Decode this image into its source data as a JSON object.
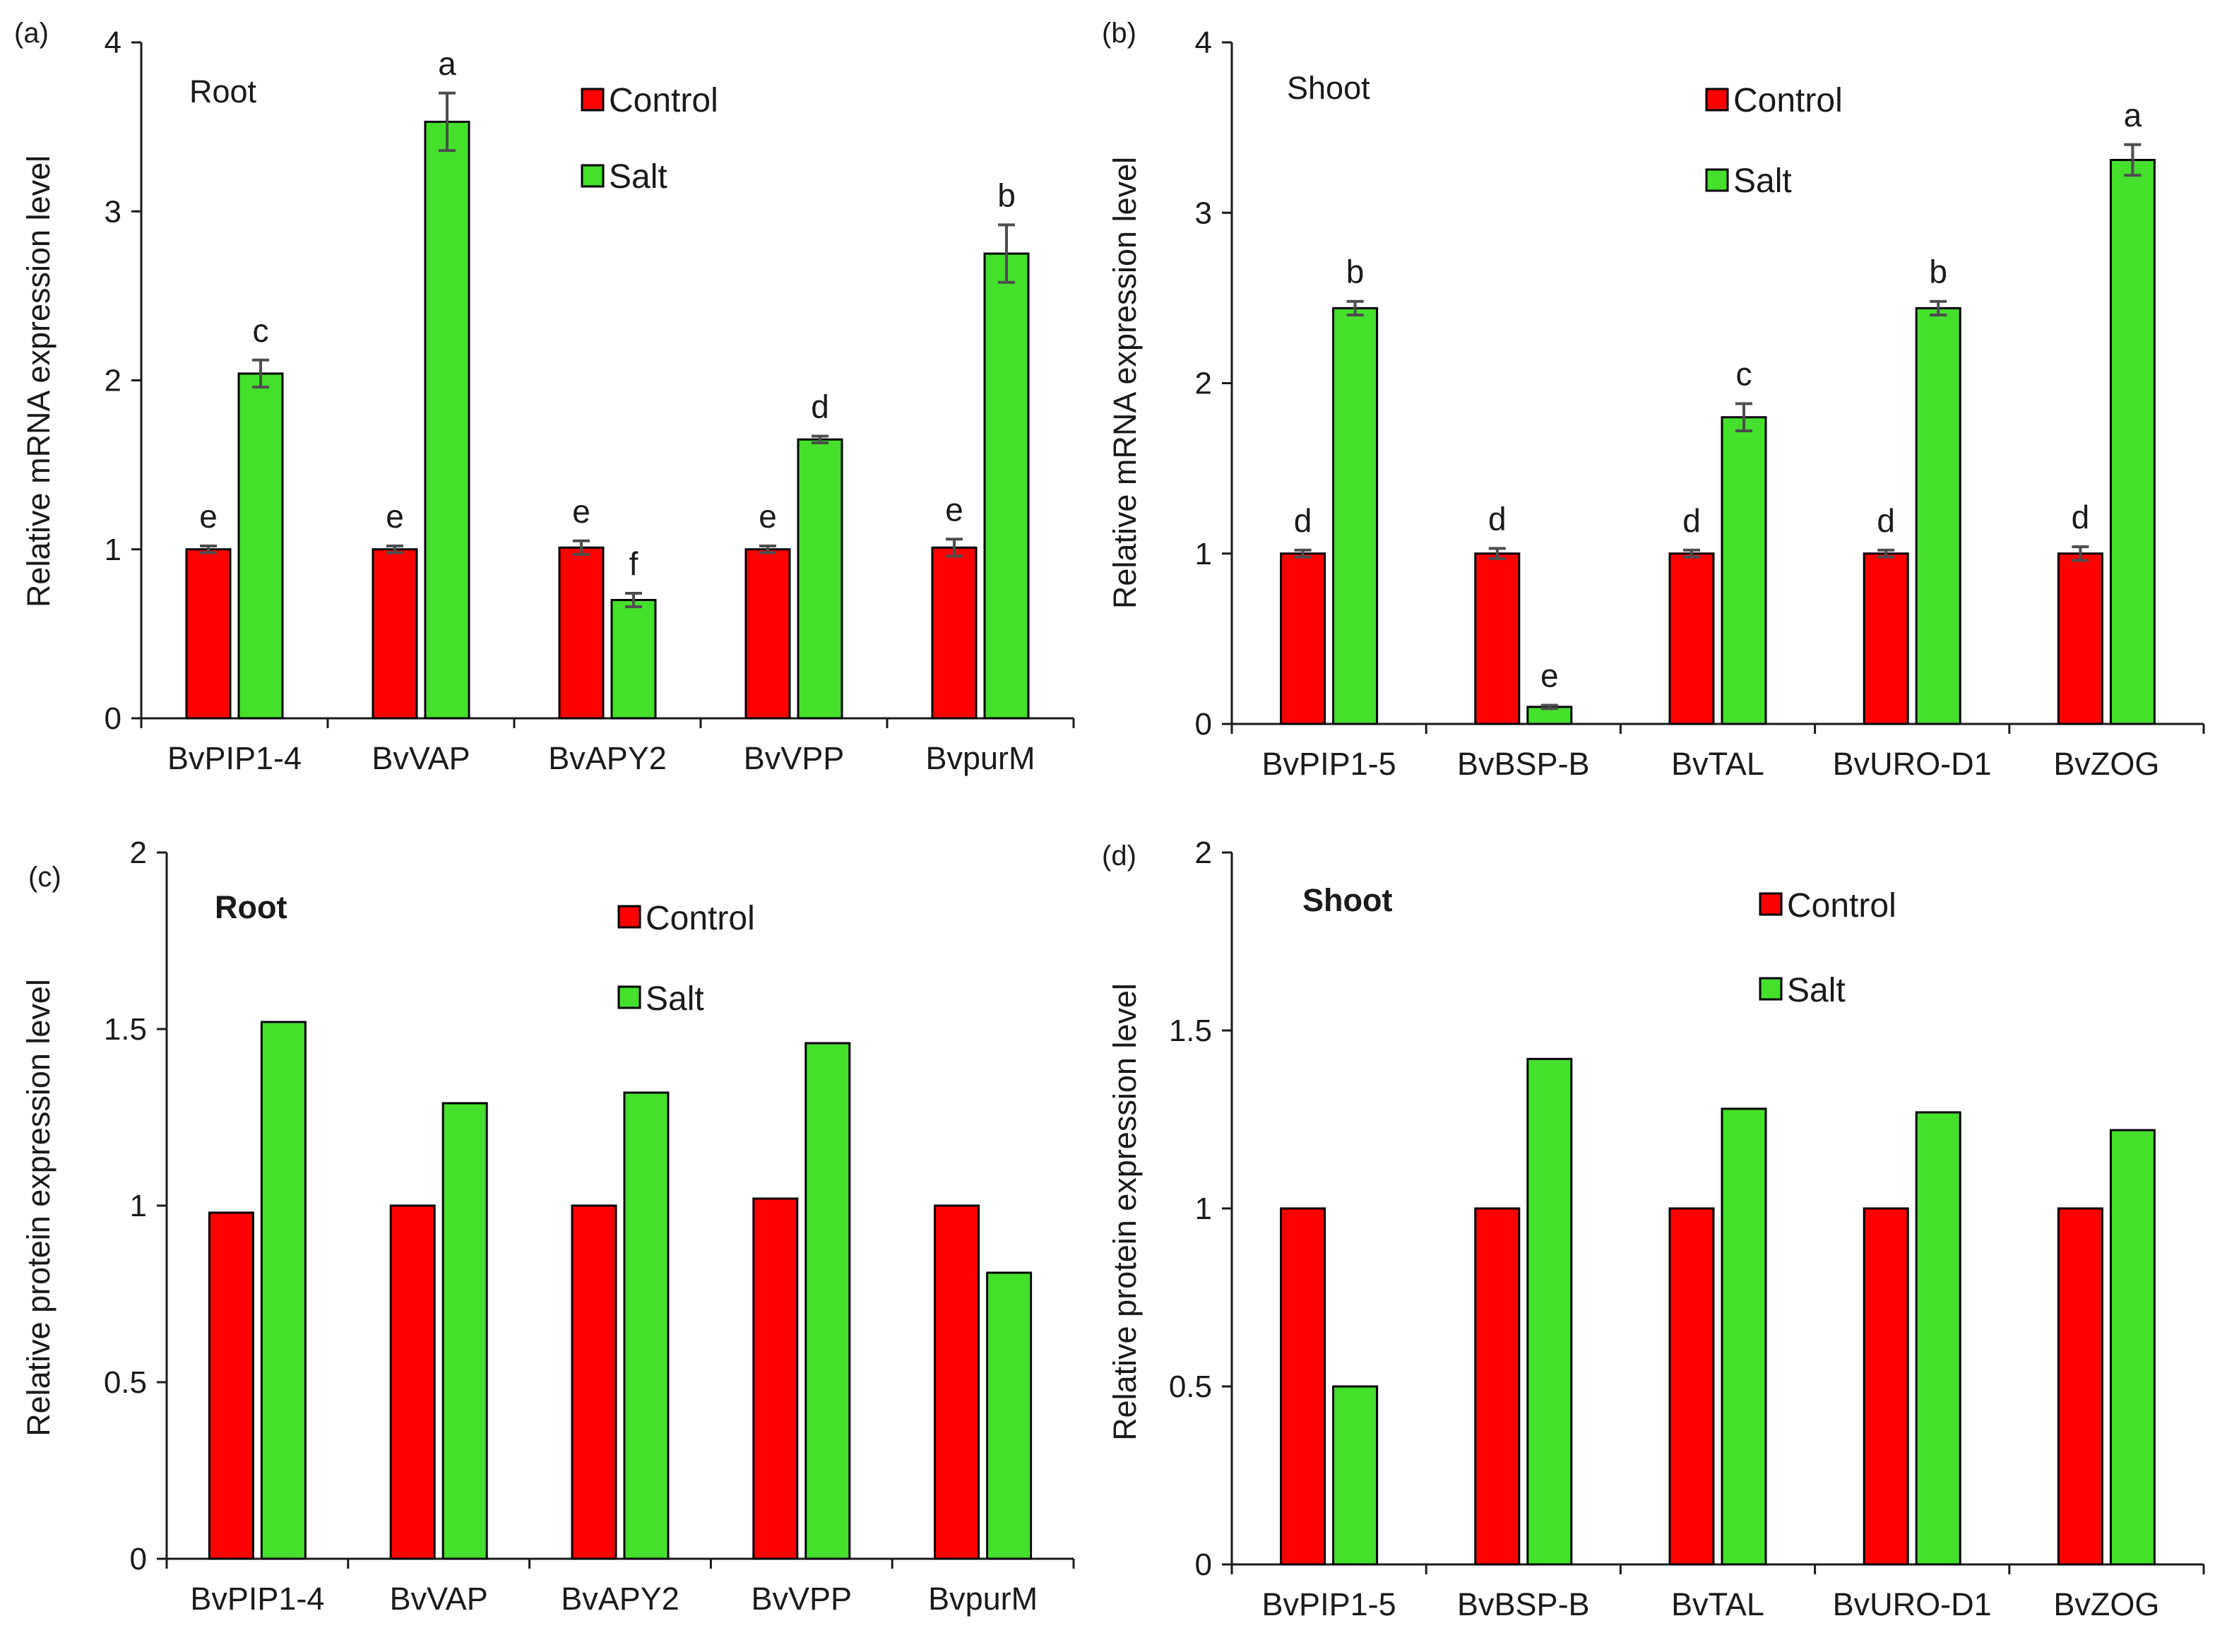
{
  "colors": {
    "control": "#ff0000",
    "salt": "#44e02c",
    "axis": "#1a1a1a",
    "error_bar": "#4d4d4d"
  },
  "chart_data": [
    {
      "panel": "(a)",
      "type": "bar",
      "subtitle": "Root",
      "subtitle_bold": false,
      "ylabel": "Relative  mRNA  expression  level",
      "ylim": [
        0,
        4
      ],
      "yticks": [
        0,
        1,
        2,
        3,
        4
      ],
      "ytick_labels": [
        "0",
        "1",
        "2",
        "3",
        "4"
      ],
      "categories": [
        "BvPIP1-4",
        "BvVAP",
        "BvAPY2",
        "BvVPP",
        "BvpurM"
      ],
      "series": [
        {
          "name": "Control",
          "values": [
            1.0,
            1.0,
            1.01,
            1.0,
            1.01
          ],
          "errors": [
            0.02,
            0.02,
            0.04,
            0.02,
            0.05
          ],
          "sig": [
            "e",
            "e",
            "e",
            "e",
            "e"
          ]
        },
        {
          "name": "Salt",
          "values": [
            2.04,
            3.53,
            0.7,
            1.65,
            2.75
          ],
          "errors": [
            0.08,
            0.17,
            0.04,
            0.02,
            0.17
          ],
          "sig": [
            "c",
            "a",
            "f",
            "d",
            "b"
          ]
        }
      ]
    },
    {
      "panel": "(b)",
      "type": "bar",
      "subtitle": "Shoot",
      "subtitle_bold": false,
      "ylabel": "Relative  mRNA  expression  level",
      "ylim": [
        0,
        4
      ],
      "yticks": [
        0,
        1,
        2,
        3,
        4
      ],
      "ytick_labels": [
        "0",
        "1",
        "2",
        "3",
        "4"
      ],
      "categories": [
        "BvPIP1-5",
        "BvBSP-B",
        "BvTAL",
        "BvURO-D1",
        "BvZOG"
      ],
      "series": [
        {
          "name": "Control",
          "values": [
            1.0,
            1.0,
            1.0,
            1.0,
            1.0
          ],
          "errors": [
            0.02,
            0.03,
            0.02,
            0.02,
            0.04
          ],
          "sig": [
            "d",
            "d",
            "d",
            "d",
            "d"
          ]
        },
        {
          "name": "Salt",
          "values": [
            2.44,
            0.1,
            1.8,
            2.44,
            3.31
          ],
          "errors": [
            0.04,
            0.01,
            0.08,
            0.04,
            0.09
          ],
          "sig": [
            "b",
            "e",
            "c",
            "b",
            "a"
          ]
        }
      ]
    },
    {
      "panel": "(c)",
      "type": "bar",
      "subtitle": "Root",
      "subtitle_bold": true,
      "ylabel": "Relative  protein expression  level",
      "ylim": [
        0,
        2
      ],
      "yticks": [
        0,
        0.5,
        1,
        1.5,
        2
      ],
      "ytick_labels": [
        "0",
        "0.5",
        "1",
        "1.5",
        "2"
      ],
      "categories": [
        "BvPIP1-4",
        "BvVAP",
        "BvAPY2",
        "BvVPP",
        "BvpurM"
      ],
      "series": [
        {
          "name": "Control",
          "values": [
            0.98,
            1.0,
            1.0,
            1.02,
            1.0
          ]
        },
        {
          "name": "Salt",
          "values": [
            1.52,
            1.29,
            1.32,
            1.46,
            0.81
          ]
        }
      ]
    },
    {
      "panel": "(d)",
      "type": "bar",
      "subtitle": "Shoot",
      "subtitle_bold": true,
      "ylabel": "Relative  protein expression  level",
      "ylim": [
        0,
        2
      ],
      "yticks": [
        0,
        0.5,
        1,
        1.5,
        2
      ],
      "ytick_labels": [
        "0",
        "0.5",
        "1",
        "1.5",
        "2"
      ],
      "categories": [
        "BvPIP1-5",
        "BvBSP-B",
        "BvTAL",
        "BvURO-D1",
        "BvZOG"
      ],
      "series": [
        {
          "name": "Control",
          "values": [
            1.0,
            1.0,
            1.0,
            1.0,
            1.0
          ]
        },
        {
          "name": "Salt",
          "values": [
            0.5,
            1.42,
            1.28,
            1.27,
            1.22
          ]
        }
      ]
    }
  ]
}
